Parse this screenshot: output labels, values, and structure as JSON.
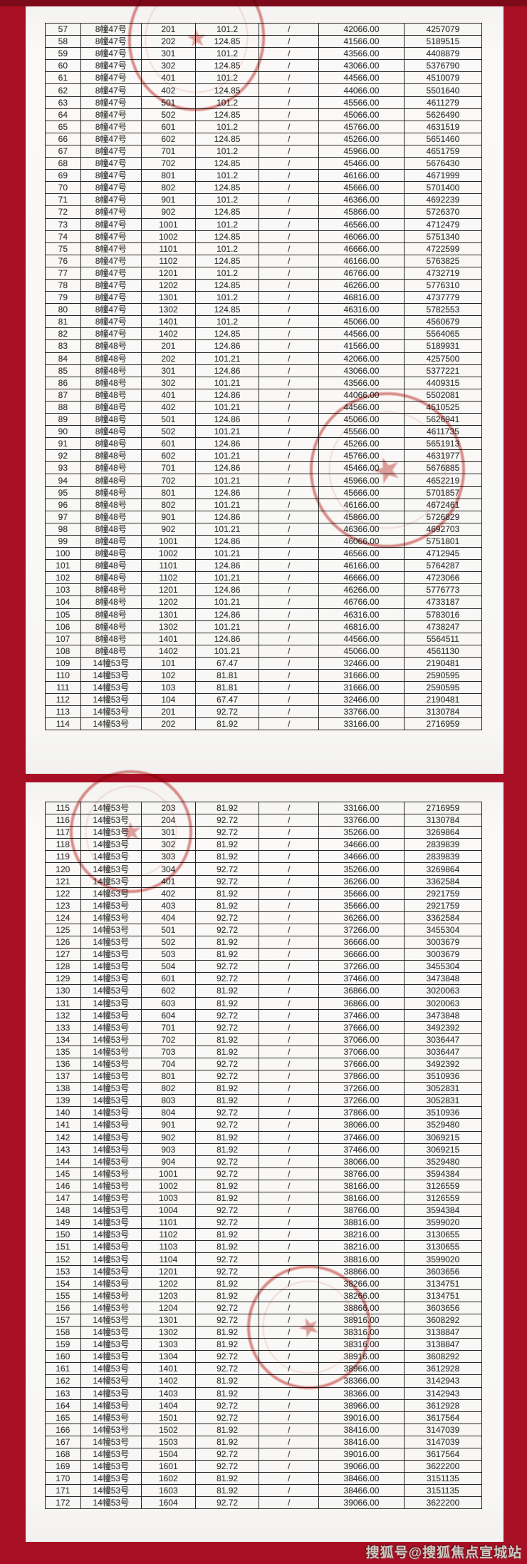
{
  "page": {
    "background_color": "#a80f24",
    "panel_color": "#f8f7f5",
    "seal_color": "#c13028",
    "table_border_color": "#262626",
    "watermark": "搜狐号@搜狐焦点宣城站"
  },
  "tables": [
    {
      "rows": [
        [
          "57",
          "8幢47号",
          "201",
          "101.2",
          "/",
          "42066.00",
          "4257079"
        ],
        [
          "58",
          "8幢47号",
          "202",
          "124.85",
          "/",
          "41566.00",
          "5189515"
        ],
        [
          "59",
          "8幢47号",
          "301",
          "101.2",
          "/",
          "43566.00",
          "4408879"
        ],
        [
          "60",
          "8幢47号",
          "302",
          "124.85",
          "/",
          "43066.00",
          "5376790"
        ],
        [
          "61",
          "8幢47号",
          "401",
          "101.2",
          "/",
          "44566.00",
          "4510079"
        ],
        [
          "62",
          "8幢47号",
          "402",
          "124.85",
          "/",
          "44066.00",
          "5501640"
        ],
        [
          "63",
          "8幢47号",
          "501",
          "101.2",
          "/",
          "45566.00",
          "4611279"
        ],
        [
          "64",
          "8幢47号",
          "502",
          "124.85",
          "/",
          "45066.00",
          "5626490"
        ],
        [
          "65",
          "8幢47号",
          "601",
          "101.2",
          "/",
          "45766.00",
          "4631519"
        ],
        [
          "66",
          "8幢47号",
          "602",
          "124.85",
          "/",
          "45266.00",
          "5651460"
        ],
        [
          "67",
          "8幢47号",
          "701",
          "101.2",
          "/",
          "45966.00",
          "4651759"
        ],
        [
          "68",
          "8幢47号",
          "702",
          "124.85",
          "/",
          "45466.00",
          "5676430"
        ],
        [
          "69",
          "8幢47号",
          "801",
          "101.2",
          "/",
          "46166.00",
          "4671999"
        ],
        [
          "70",
          "8幢47号",
          "802",
          "124.85",
          "/",
          "45666.00",
          "5701400"
        ],
        [
          "71",
          "8幢47号",
          "901",
          "101.2",
          "/",
          "46366.00",
          "4692239"
        ],
        [
          "72",
          "8幢47号",
          "902",
          "124.85",
          "/",
          "45866.00",
          "5726370"
        ],
        [
          "73",
          "8幢47号",
          "1001",
          "101.2",
          "/",
          "46566.00",
          "4712479"
        ],
        [
          "74",
          "8幢47号",
          "1002",
          "124.85",
          "/",
          "46066.00",
          "5751340"
        ],
        [
          "75",
          "8幢47号",
          "1101",
          "101.2",
          "/",
          "46666.00",
          "4722599"
        ],
        [
          "76",
          "8幢47号",
          "1102",
          "124.85",
          "/",
          "46166.00",
          "5763825"
        ],
        [
          "77",
          "8幢47号",
          "1201",
          "101.2",
          "/",
          "46766.00",
          "4732719"
        ],
        [
          "78",
          "8幢47号",
          "1202",
          "124.85",
          "/",
          "46266.00",
          "5776310"
        ],
        [
          "79",
          "8幢47号",
          "1301",
          "101.2",
          "/",
          "46816.00",
          "4737779"
        ],
        [
          "80",
          "8幢47号",
          "1302",
          "124.85",
          "/",
          "46316.00",
          "5782553"
        ],
        [
          "81",
          "8幢47号",
          "1401",
          "101.2",
          "/",
          "45066.00",
          "4560679"
        ],
        [
          "82",
          "8幢47号",
          "1402",
          "124.85",
          "/",
          "44566.00",
          "5564065"
        ],
        [
          "83",
          "8幢48号",
          "201",
          "124.86",
          "/",
          "41566.00",
          "5189931"
        ],
        [
          "84",
          "8幢48号",
          "202",
          "101.21",
          "/",
          "42066.00",
          "4257500"
        ],
        [
          "85",
          "8幢48号",
          "301",
          "124.86",
          "/",
          "43066.00",
          "5377221"
        ],
        [
          "86",
          "8幢48号",
          "302",
          "101.21",
          "/",
          "43566.00",
          "4409315"
        ],
        [
          "87",
          "8幢48号",
          "401",
          "124.86",
          "/",
          "44066.00",
          "5502081"
        ],
        [
          "88",
          "8幢48号",
          "402",
          "101.21",
          "/",
          "44566.00",
          "4510525"
        ],
        [
          "89",
          "8幢48号",
          "501",
          "124.86",
          "/",
          "45066.00",
          "5626941"
        ],
        [
          "90",
          "8幢48号",
          "502",
          "101.21",
          "/",
          "45566.00",
          "4611735"
        ],
        [
          "91",
          "8幢48号",
          "601",
          "124.86",
          "/",
          "45266.00",
          "5651913"
        ],
        [
          "92",
          "8幢48号",
          "602",
          "101.21",
          "/",
          "45766.00",
          "4631977"
        ],
        [
          "93",
          "8幢48号",
          "701",
          "124.86",
          "/",
          "45466.00",
          "5676885"
        ],
        [
          "94",
          "8幢48号",
          "702",
          "101.21",
          "/",
          "45966.00",
          "4652219"
        ],
        [
          "95",
          "8幢48号",
          "801",
          "124.86",
          "/",
          "45666.00",
          "5701857"
        ],
        [
          "96",
          "8幢48号",
          "802",
          "101.21",
          "/",
          "46166.00",
          "4672461"
        ],
        [
          "97",
          "8幢48号",
          "901",
          "124.86",
          "/",
          "45866.00",
          "5726829"
        ],
        [
          "98",
          "8幢48号",
          "902",
          "101.21",
          "/",
          "46366.00",
          "4692703"
        ],
        [
          "99",
          "8幢48号",
          "1001",
          "124.86",
          "/",
          "46066.00",
          "5751801"
        ],
        [
          "100",
          "8幢48号",
          "1002",
          "101.21",
          "/",
          "46566.00",
          "4712945"
        ],
        [
          "101",
          "8幢48号",
          "1101",
          "124.86",
          "/",
          "46166.00",
          "5764287"
        ],
        [
          "102",
          "8幢48号",
          "1102",
          "101.21",
          "/",
          "46666.00",
          "4723066"
        ],
        [
          "103",
          "8幢48号",
          "1201",
          "124.86",
          "/",
          "46266.00",
          "5776773"
        ],
        [
          "104",
          "8幢48号",
          "1202",
          "101.21",
          "/",
          "46766.00",
          "4733187"
        ],
        [
          "105",
          "8幢48号",
          "1301",
          "124.86",
          "/",
          "46316.00",
          "5783016"
        ],
        [
          "106",
          "8幢48号",
          "1302",
          "101.21",
          "/",
          "46816.00",
          "4738247"
        ],
        [
          "107",
          "8幢48号",
          "1401",
          "124.86",
          "/",
          "44566.00",
          "5564511"
        ],
        [
          "108",
          "8幢48号",
          "1402",
          "101.21",
          "/",
          "45066.00",
          "4561130"
        ],
        [
          "109",
          "14幢53号",
          "101",
          "67.47",
          "/",
          "32466.00",
          "2190481"
        ],
        [
          "110",
          "14幢53号",
          "102",
          "81.81",
          "/",
          "31666.00",
          "2590595"
        ],
        [
          "111",
          "14幢53号",
          "103",
          "81.81",
          "/",
          "31666.00",
          "2590595"
        ],
        [
          "112",
          "14幢53号",
          "104",
          "67.47",
          "/",
          "32466.00",
          "2190481"
        ],
        [
          "113",
          "14幢53号",
          "201",
          "92.72",
          "/",
          "33766.00",
          "3130784"
        ],
        [
          "114",
          "14幢53号",
          "202",
          "81.92",
          "/",
          "33166.00",
          "2716959"
        ]
      ]
    },
    {
      "rows": [
        [
          "115",
          "14幢53号",
          "203",
          "81.92",
          "/",
          "33166.00",
          "2716959"
        ],
        [
          "116",
          "14幢53号",
          "204",
          "92.72",
          "/",
          "33766.00",
          "3130784"
        ],
        [
          "117",
          "14幢53号",
          "301",
          "92.72",
          "/",
          "35266.00",
          "3269864"
        ],
        [
          "118",
          "14幢53号",
          "302",
          "81.92",
          "/",
          "34666.00",
          "2839839"
        ],
        [
          "119",
          "14幢53号",
          "303",
          "81.92",
          "/",
          "34666.00",
          "2839839"
        ],
        [
          "120",
          "14幢53号",
          "304",
          "92.72",
          "/",
          "35266.00",
          "3269864"
        ],
        [
          "121",
          "14幢53号",
          "401",
          "92.72",
          "/",
          "36266.00",
          "3362584"
        ],
        [
          "122",
          "14幢53号",
          "402",
          "81.92",
          "/",
          "35666.00",
          "2921759"
        ],
        [
          "123",
          "14幢53号",
          "403",
          "81.92",
          "/",
          "35666.00",
          "2921759"
        ],
        [
          "124",
          "14幢53号",
          "404",
          "92.72",
          "/",
          "36266.00",
          "3362584"
        ],
        [
          "125",
          "14幢53号",
          "501",
          "92.72",
          "/",
          "37266.00",
          "3455304"
        ],
        [
          "126",
          "14幢53号",
          "502",
          "81.92",
          "/",
          "36666.00",
          "3003679"
        ],
        [
          "127",
          "14幢53号",
          "503",
          "81.92",
          "/",
          "36666.00",
          "3003679"
        ],
        [
          "128",
          "14幢53号",
          "504",
          "92.72",
          "/",
          "37266.00",
          "3455304"
        ],
        [
          "129",
          "14幢53号",
          "601",
          "92.72",
          "/",
          "37466.00",
          "3473848"
        ],
        [
          "130",
          "14幢53号",
          "602",
          "81.92",
          "/",
          "36866.00",
          "3020063"
        ],
        [
          "131",
          "14幢53号",
          "603",
          "81.92",
          "/",
          "36866.00",
          "3020063"
        ],
        [
          "132",
          "14幢53号",
          "604",
          "92.72",
          "/",
          "37466.00",
          "3473848"
        ],
        [
          "133",
          "14幢53号",
          "701",
          "92.72",
          "/",
          "37666.00",
          "3492392"
        ],
        [
          "134",
          "14幢53号",
          "702",
          "81.92",
          "/",
          "37066.00",
          "3036447"
        ],
        [
          "135",
          "14幢53号",
          "703",
          "81.92",
          "/",
          "37066.00",
          "3036447"
        ],
        [
          "136",
          "14幢53号",
          "704",
          "92.72",
          "/",
          "37666.00",
          "3492392"
        ],
        [
          "137",
          "14幢53号",
          "801",
          "92.72",
          "/",
          "37866.00",
          "3510936"
        ],
        [
          "138",
          "14幢53号",
          "802",
          "81.92",
          "/",
          "37266.00",
          "3052831"
        ],
        [
          "139",
          "14幢53号",
          "803",
          "81.92",
          "/",
          "37266.00",
          "3052831"
        ],
        [
          "140",
          "14幢53号",
          "804",
          "92.72",
          "/",
          "37866.00",
          "3510936"
        ],
        [
          "141",
          "14幢53号",
          "901",
          "92.72",
          "/",
          "38066.00",
          "3529480"
        ],
        [
          "142",
          "14幢53号",
          "902",
          "81.92",
          "/",
          "37466.00",
          "3069215"
        ],
        [
          "143",
          "14幢53号",
          "903",
          "81.92",
          "/",
          "37466.00",
          "3069215"
        ],
        [
          "144",
          "14幢53号",
          "904",
          "92.72",
          "/",
          "38066.00",
          "3529480"
        ],
        [
          "145",
          "14幢53号",
          "1001",
          "92.72",
          "/",
          "38766.00",
          "3594384"
        ],
        [
          "146",
          "14幢53号",
          "1002",
          "81.92",
          "/",
          "38166.00",
          "3126559"
        ],
        [
          "147",
          "14幢53号",
          "1003",
          "81.92",
          "/",
          "38166.00",
          "3126559"
        ],
        [
          "148",
          "14幢53号",
          "1004",
          "92.72",
          "/",
          "38766.00",
          "3594384"
        ],
        [
          "149",
          "14幢53号",
          "1101",
          "92.72",
          "/",
          "38816.00",
          "3599020"
        ],
        [
          "150",
          "14幢53号",
          "1102",
          "81.92",
          "/",
          "38216.00",
          "3130655"
        ],
        [
          "151",
          "14幢53号",
          "1103",
          "81.92",
          "/",
          "38216.00",
          "3130655"
        ],
        [
          "152",
          "14幢53号",
          "1104",
          "92.72",
          "/",
          "38816.00",
          "3599020"
        ],
        [
          "153",
          "14幢53号",
          "1201",
          "92.72",
          "/",
          "38866.00",
          "3603656"
        ],
        [
          "154",
          "14幢53号",
          "1202",
          "81.92",
          "/",
          "38266.00",
          "3134751"
        ],
        [
          "155",
          "14幢53号",
          "1203",
          "81.92",
          "/",
          "38266.00",
          "3134751"
        ],
        [
          "156",
          "14幢53号",
          "1204",
          "92.72",
          "/",
          "38866.00",
          "3603656"
        ],
        [
          "157",
          "14幢53号",
          "1301",
          "92.72",
          "/",
          "38916.00",
          "3608292"
        ],
        [
          "158",
          "14幢53号",
          "1302",
          "81.92",
          "/",
          "38316.00",
          "3138847"
        ],
        [
          "159",
          "14幢53号",
          "1303",
          "81.92",
          "/",
          "38316.00",
          "3138847"
        ],
        [
          "160",
          "14幢53号",
          "1304",
          "92.72",
          "/",
          "38916.00",
          "3608292"
        ],
        [
          "161",
          "14幢53号",
          "1401",
          "92.72",
          "/",
          "38966.00",
          "3612928"
        ],
        [
          "162",
          "14幢53号",
          "1402",
          "81.92",
          "/",
          "38366.00",
          "3142943"
        ],
        [
          "163",
          "14幢53号",
          "1403",
          "81.92",
          "/",
          "38366.00",
          "3142943"
        ],
        [
          "164",
          "14幢53号",
          "1404",
          "92.72",
          "/",
          "38966.00",
          "3612928"
        ],
        [
          "165",
          "14幢53号",
          "1501",
          "92.72",
          "/",
          "39016.00",
          "3617564"
        ],
        [
          "166",
          "14幢53号",
          "1502",
          "81.92",
          "/",
          "38416.00",
          "3147039"
        ],
        [
          "167",
          "14幢53号",
          "1503",
          "81.92",
          "/",
          "38416.00",
          "3147039"
        ],
        [
          "168",
          "14幢53号",
          "1504",
          "92.72",
          "/",
          "39016.00",
          "3617564"
        ],
        [
          "169",
          "14幢53号",
          "1601",
          "92.72",
          "/",
          "39066.00",
          "3622200"
        ],
        [
          "170",
          "14幢53号",
          "1602",
          "81.92",
          "/",
          "38466.00",
          "3151135"
        ],
        [
          "171",
          "14幢53号",
          "1603",
          "81.92",
          "/",
          "38466.00",
          "3151135"
        ],
        [
          "172",
          "14幢53号",
          "1604",
          "92.72",
          "/",
          "39066.00",
          "3622200"
        ]
      ]
    }
  ]
}
